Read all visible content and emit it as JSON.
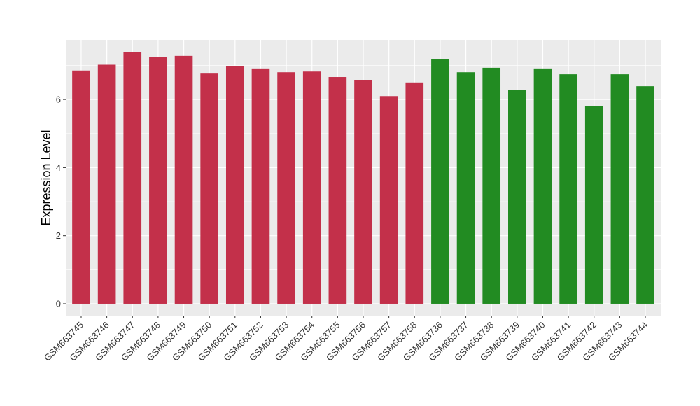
{
  "chart_data": {
    "type": "bar",
    "title": "",
    "xlabel": "",
    "ylabel": "Expression Level",
    "ylim": [
      -0.35,
      7.75
    ],
    "yticks": [
      0,
      2,
      4,
      6
    ],
    "grid": true,
    "legend": "none",
    "colors": {
      "group_a": "#C3304A",
      "group_b": "#228B22",
      "panel_bg": "#EBEBEB",
      "grid": "#FFFFFF"
    },
    "categories": [
      "GSM663745",
      "GSM663746",
      "GSM663747",
      "GSM663748",
      "GSM663749",
      "GSM663750",
      "GSM663751",
      "GSM663752",
      "GSM663753",
      "GSM663754",
      "GSM663755",
      "GSM663756",
      "GSM663757",
      "GSM663758",
      "GSM663736",
      "GSM663737",
      "GSM663738",
      "GSM663739",
      "GSM663740",
      "GSM663741",
      "GSM663742",
      "GSM663743",
      "GSM663744"
    ],
    "values": [
      6.85,
      7.02,
      7.4,
      7.24,
      7.28,
      6.76,
      6.98,
      6.91,
      6.8,
      6.82,
      6.66,
      6.57,
      6.1,
      6.5,
      7.19,
      6.8,
      6.93,
      6.27,
      6.91,
      6.74,
      5.81,
      6.74,
      6.39
    ],
    "groups": [
      "a",
      "a",
      "a",
      "a",
      "a",
      "a",
      "a",
      "a",
      "a",
      "a",
      "a",
      "a",
      "a",
      "a",
      "b",
      "b",
      "b",
      "b",
      "b",
      "b",
      "b",
      "b",
      "b"
    ]
  }
}
